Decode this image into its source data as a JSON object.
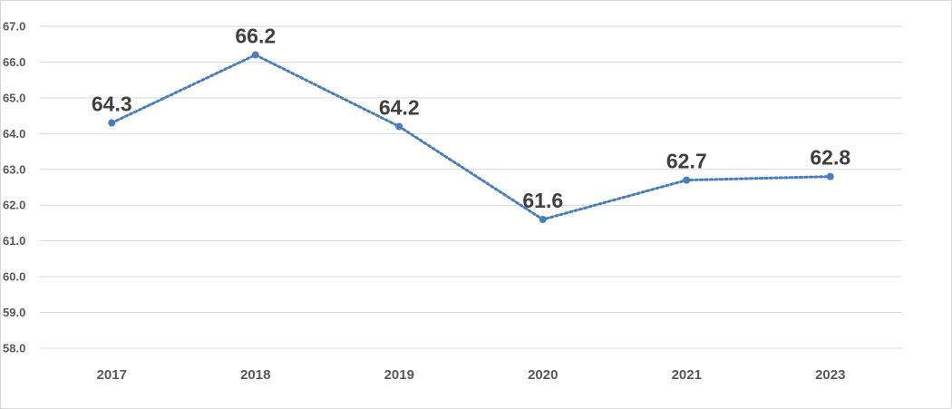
{
  "chart_data": {
    "type": "line",
    "title": "",
    "xlabel": "",
    "ylabel": "",
    "categories": [
      "2017",
      "2018",
      "2019",
      "2020",
      "2021",
      "2023"
    ],
    "series": [
      {
        "values": [
          64.3,
          66.2,
          64.2,
          61.6,
          62.7,
          62.8
        ]
      }
    ],
    "data_labels": [
      "64.3",
      "66.2",
      "64.2",
      "61.6",
      "62.7",
      "62.8"
    ],
    "ylim": [
      58.0,
      67.0
    ],
    "y_ticks": [
      "58.0",
      "59.0",
      "60.0",
      "61.0",
      "62.0",
      "63.0",
      "64.0",
      "65.0",
      "66.0",
      "67.0"
    ],
    "grid": true,
    "legend": "none",
    "line_style": "dotted",
    "colors": {
      "series": "#4a7ebb",
      "grid": "#d9d9d9",
      "tick_text": "#595959",
      "label_text": "#404040"
    }
  }
}
